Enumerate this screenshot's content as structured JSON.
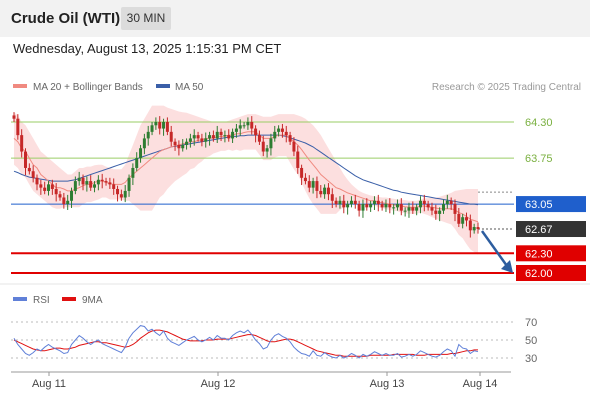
{
  "header": {
    "title": "Crude Oil (WTI)",
    "timeframe": "30 MIN"
  },
  "datetime": "Wednesday, August 13, 2025 1:15:31 PM CET",
  "legend": {
    "ma20": "MA 20 + Bollinger Bands",
    "ma50": "MA 50",
    "credit": "Research © 2025 Trading Central",
    "rsi": "RSI",
    "rsi_ma": "9MA"
  },
  "colors": {
    "ma20": "#f08a80",
    "ma50": "#3a5fa8",
    "bollinger": "#fbd4d4",
    "up": "#2e7d32",
    "down": "#c62828",
    "resistance": "#9acd66",
    "pivot": "#1f5fcc",
    "support": "#e00000",
    "current": "#333333",
    "rsi": "#6080d8",
    "rsi_ma": "#e01010"
  },
  "chart_data": {
    "type": "candlestick",
    "instrument": "Crude Oil (WTI)",
    "interval": "30 MIN",
    "ylim": [
      61.95,
      64.6
    ],
    "x_labels": [
      "Aug 11",
      "Aug 12",
      "Aug 13",
      "Aug 14"
    ],
    "levels": [
      {
        "value": 64.3,
        "label": "64.30",
        "kind": "resistance"
      },
      {
        "value": 63.75,
        "label": "63.75",
        "kind": "resistance"
      },
      {
        "value": 63.05,
        "label": "63.05",
        "kind": "pivot"
      },
      {
        "value": 62.67,
        "label": "62.67",
        "kind": "current"
      },
      {
        "value": 62.3,
        "label": "62.30",
        "kind": "support"
      },
      {
        "value": 62.0,
        "label": "62.00",
        "kind": "support"
      }
    ],
    "forecast_arrow": {
      "from": 62.67,
      "to": 62.0
    },
    "close": [
      64.35,
      64.1,
      63.85,
      63.6,
      63.55,
      63.45,
      63.35,
      63.3,
      63.25,
      63.35,
      63.28,
      63.2,
      63.15,
      63.05,
      63.1,
      63.25,
      63.4,
      63.45,
      63.35,
      63.4,
      63.3,
      63.35,
      63.42,
      63.4,
      63.38,
      63.35,
      63.28,
      63.2,
      63.15,
      63.25,
      63.45,
      63.6,
      63.75,
      63.9,
      64.05,
      64.15,
      64.25,
      64.3,
      64.2,
      64.3,
      64.15,
      64.0,
      63.95,
      63.9,
      63.95,
      64.0,
      64.05,
      64.1,
      64.05,
      64.0,
      64.05,
      64.1,
      64.05,
      64.15,
      64.1,
      64.1,
      64.05,
      64.15,
      64.2,
      64.25,
      64.25,
      64.3,
      64.2,
      64.1,
      64.0,
      63.85,
      63.9,
      64.05,
      64.15,
      64.2,
      64.15,
      64.1,
      64.0,
      63.85,
      63.6,
      63.45,
      63.4,
      63.3,
      63.4,
      63.25,
      63.2,
      63.3,
      63.2,
      63.1,
      63.05,
      63.1,
      63.0,
      63.05,
      63.1,
      63.05,
      62.95,
      63.05,
      63.0,
      63.05,
      63.1,
      63.05,
      63.0,
      63.05,
      63.0,
      63.0,
      63.05,
      62.95,
      62.95,
      63.0,
      62.95,
      63.0,
      63.1,
      63.05,
      63.0,
      62.95,
      62.9,
      62.95,
      63.05,
      63.1,
      63.05,
      62.9,
      62.75,
      62.85,
      62.8,
      62.65,
      62.7,
      62.67
    ],
    "ma20": [
      64.05,
      64.0,
      63.9,
      63.85,
      63.75,
      63.65,
      63.6,
      63.5,
      63.45,
      63.4,
      63.35,
      63.3,
      63.3,
      63.28,
      63.25,
      63.25,
      63.28,
      63.3,
      63.33,
      63.35,
      63.35,
      63.38,
      63.4,
      63.4,
      63.38,
      63.36,
      63.35,
      63.35,
      63.35,
      63.38,
      63.45,
      63.5,
      63.55,
      63.6,
      63.65,
      63.7,
      63.75,
      63.8,
      63.85,
      63.88,
      63.9,
      63.92,
      63.94,
      63.95,
      63.97,
      63.98,
      64.0,
      64.0,
      64.02,
      64.03,
      64.05,
      64.05,
      64.06,
      64.07,
      64.08,
      64.08,
      64.1,
      64.1,
      64.12,
      64.12,
      64.14,
      64.15,
      64.15,
      64.15,
      64.1,
      64.05,
      64.05,
      64.05,
      64.08,
      64.1,
      64.1,
      64.1,
      64.05,
      64.0,
      63.95,
      63.88,
      63.8,
      63.72,
      63.65,
      63.58,
      63.5,
      63.45,
      63.4,
      63.35,
      63.3,
      63.28,
      63.25,
      63.22,
      63.2,
      63.18,
      63.16,
      63.14,
      63.12,
      63.1,
      63.1,
      63.08,
      63.07,
      63.06,
      63.05,
      63.04,
      63.03,
      63.02,
      63.01,
      63.0,
      63.0,
      63.0,
      63.02,
      63.02,
      63.01,
      63.0,
      62.99,
      62.98,
      62.98,
      62.98,
      62.98,
      62.96,
      62.92,
      62.9,
      62.86,
      62.82,
      62.8,
      62.78
    ],
    "bb_upper": [
      64.45,
      64.4,
      64.3,
      64.25,
      64.15,
      64.05,
      63.95,
      63.85,
      63.8,
      63.75,
      63.7,
      63.65,
      63.6,
      63.55,
      63.5,
      63.5,
      63.55,
      63.6,
      63.6,
      63.62,
      63.62,
      63.64,
      63.65,
      63.65,
      63.62,
      63.6,
      63.58,
      63.58,
      63.58,
      63.65,
      63.8,
      63.95,
      64.1,
      64.25,
      64.35,
      64.45,
      64.55,
      64.55,
      64.55,
      64.55,
      64.52,
      64.5,
      64.48,
      64.46,
      64.45,
      64.44,
      64.42,
      64.4,
      64.38,
      64.36,
      64.34,
      64.32,
      64.3,
      64.3,
      64.3,
      64.3,
      64.32,
      64.34,
      64.36,
      64.38,
      64.4,
      64.42,
      64.42,
      64.42,
      64.4,
      64.38,
      64.38,
      64.38,
      64.4,
      64.42,
      64.42,
      64.42,
      64.42,
      64.42,
      64.4,
      64.38,
      64.35,
      64.3,
      64.25,
      64.18,
      64.1,
      64.0,
      63.9,
      63.8,
      63.7,
      63.6,
      63.5,
      63.42,
      63.35,
      63.3,
      63.25,
      63.22,
      63.2,
      63.18,
      63.17,
      63.16,
      63.15,
      63.15,
      63.14,
      63.13,
      63.12,
      63.12,
      63.11,
      63.1,
      63.1,
      63.1,
      63.12,
      63.14,
      63.14,
      63.15,
      63.15,
      63.16,
      63.18,
      63.2,
      63.22,
      63.25,
      63.26,
      63.27,
      63.28,
      63.28,
      63.28,
      63.28
    ],
    "bb_lower": [
      63.65,
      63.6,
      63.5,
      63.45,
      63.35,
      63.25,
      63.2,
      63.15,
      63.1,
      63.05,
      63.0,
      62.98,
      62.98,
      63.0,
      63.0,
      63.0,
      63.0,
      63.0,
      63.05,
      63.08,
      63.08,
      63.1,
      63.12,
      63.15,
      63.15,
      63.12,
      63.12,
      63.12,
      63.12,
      63.1,
      63.1,
      63.05,
      63.0,
      62.95,
      62.95,
      62.95,
      62.95,
      63.05,
      63.15,
      63.2,
      63.28,
      63.34,
      63.4,
      63.44,
      63.48,
      63.52,
      63.58,
      63.6,
      63.66,
      63.7,
      63.76,
      63.78,
      63.82,
      63.84,
      63.86,
      63.86,
      63.88,
      63.86,
      63.88,
      63.86,
      63.88,
      63.88,
      63.88,
      63.88,
      63.8,
      63.72,
      63.72,
      63.72,
      63.76,
      63.78,
      63.78,
      63.78,
      63.68,
      63.58,
      63.5,
      63.38,
      63.25,
      63.14,
      63.05,
      62.98,
      62.9,
      62.9,
      62.9,
      62.9,
      62.9,
      62.96,
      63.0,
      63.02,
      63.05,
      63.06,
      63.07,
      63.06,
      63.04,
      63.02,
      63.03,
      63.0,
      62.99,
      62.97,
      62.96,
      62.95,
      62.94,
      62.92,
      62.91,
      62.9,
      62.9,
      62.9,
      62.92,
      62.9,
      62.88,
      62.85,
      62.83,
      62.8,
      62.78,
      62.76,
      62.74,
      62.67,
      62.58,
      62.53,
      62.44,
      62.36,
      62.32,
      62.28
    ],
    "ma50": [
      63.55,
      63.53,
      63.5,
      63.48,
      63.46,
      63.45,
      63.44,
      63.43,
      63.42,
      63.41,
      63.4,
      63.4,
      63.4,
      63.4,
      63.4,
      63.41,
      63.42,
      63.44,
      63.46,
      63.48,
      63.5,
      63.52,
      63.54,
      63.56,
      63.58,
      63.6,
      63.62,
      63.64,
      63.66,
      63.68,
      63.7,
      63.72,
      63.74,
      63.76,
      63.78,
      63.8,
      63.82,
      63.84,
      63.86,
      63.88,
      63.9,
      63.92,
      63.93,
      63.94,
      63.95,
      63.96,
      63.97,
      63.98,
      63.99,
      64.0,
      64.01,
      64.02,
      64.03,
      64.04,
      64.05,
      64.06,
      64.07,
      64.08,
      64.08,
      64.09,
      64.09,
      64.1,
      64.1,
      64.1,
      64.1,
      64.1,
      64.1,
      64.1,
      64.1,
      64.1,
      64.09,
      64.08,
      64.06,
      64.04,
      64.02,
      64.0,
      63.98,
      63.95,
      63.92,
      63.88,
      63.84,
      63.8,
      63.76,
      63.72,
      63.68,
      63.64,
      63.6,
      63.56,
      63.52,
      63.48,
      63.45,
      63.42,
      63.4,
      63.38,
      63.36,
      63.34,
      63.32,
      63.3,
      63.28,
      63.26,
      63.25,
      63.23,
      63.22,
      63.21,
      63.2,
      63.19,
      63.18,
      63.17,
      63.16,
      63.15,
      63.14,
      63.13,
      63.12,
      63.11,
      63.1,
      63.09,
      63.08,
      63.07,
      63.06,
      63.05,
      63.05,
      63.04
    ],
    "rsi": {
      "ticks": [
        70,
        50,
        30
      ],
      "ylim": [
        20,
        80
      ],
      "rsi": [
        52,
        45,
        40,
        35,
        33,
        36,
        40,
        38,
        42,
        45,
        42,
        40,
        38,
        35,
        36,
        45,
        50,
        55,
        52,
        48,
        45,
        48,
        50,
        46,
        44,
        42,
        40,
        38,
        36,
        42,
        52,
        58,
        62,
        66,
        65,
        60,
        62,
        58,
        55,
        60,
        52,
        48,
        46,
        44,
        47,
        50,
        52,
        54,
        50,
        48,
        50,
        53,
        50,
        55,
        52,
        52,
        50,
        55,
        58,
        60,
        58,
        61,
        56,
        50,
        46,
        40,
        42,
        50,
        55,
        57,
        54,
        52,
        48,
        42,
        38,
        35,
        34,
        32,
        38,
        33,
        32,
        36,
        33,
        31,
        30,
        33,
        30,
        32,
        35,
        33,
        30,
        34,
        32,
        34,
        37,
        35,
        33,
        35,
        33,
        33,
        35,
        31,
        32,
        34,
        32,
        34,
        38,
        36,
        34,
        32,
        31,
        33,
        37,
        40,
        38,
        32,
        45,
        41,
        40,
        35,
        38,
        37
      ],
      "ma9": [
        50,
        48,
        46,
        44,
        42,
        40,
        39,
        38,
        38,
        39,
        40,
        41,
        41,
        40,
        40,
        41,
        42,
        44,
        45,
        46,
        47,
        48,
        48,
        47,
        47,
        46,
        45,
        44,
        43,
        42,
        43,
        45,
        48,
        52,
        55,
        58,
        60,
        61,
        61,
        60,
        59,
        57,
        55,
        53,
        51,
        50,
        49,
        49,
        49,
        49,
        50,
        50,
        50,
        51,
        51,
        51,
        51,
        52,
        53,
        54,
        55,
        56,
        56,
        55,
        53,
        51,
        49,
        48,
        48,
        49,
        50,
        51,
        51,
        50,
        48,
        46,
        44,
        42,
        40,
        38,
        37,
        36,
        35,
        34,
        33,
        33,
        32,
        32,
        32,
        32,
        32,
        32,
        32,
        33,
        33,
        33,
        33,
        33,
        33,
        34,
        34,
        34,
        34,
        34,
        34,
        33,
        33,
        33,
        34,
        34,
        34,
        34,
        34,
        34,
        35,
        35,
        36,
        37,
        38,
        38,
        39,
        39
      ]
    }
  }
}
